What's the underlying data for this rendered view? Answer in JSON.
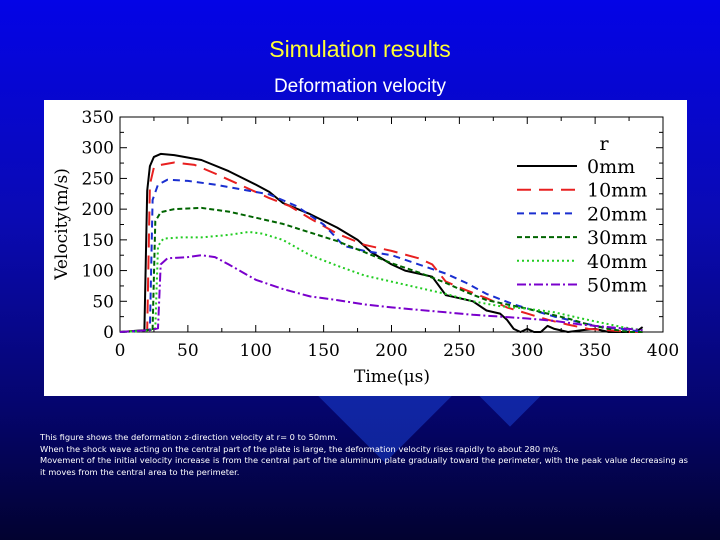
{
  "slide": {
    "title": "Simulation results",
    "subtitle": "Deformation velocity",
    "caption_lines": [
      "This figure shows the deformation z-direction velocity at r= 0 to 50mm.",
      "When the shock wave acting on the central part of the plate is large, the deformation velocity rises rapidly to about 280 m/s.",
      "Movement of the initial velocity increase is from the central part of the aluminum plate gradually toward the perimeter, with the peak value decreasing as it moves from the central area to the perimeter."
    ],
    "colors": {
      "background": "#0404e6",
      "title": "#ffff33",
      "text": "#ffffff"
    }
  },
  "chart_data": {
    "type": "line",
    "xlabel": "Time(μs)",
    "ylabel": "Velocity(m/s)",
    "xlim": [
      0,
      400
    ],
    "ylim": [
      0,
      350
    ],
    "xticks": [
      0,
      50,
      100,
      150,
      200,
      250,
      300,
      350,
      400
    ],
    "yticks": [
      0,
      50,
      100,
      150,
      200,
      250,
      300,
      350
    ],
    "grid": false,
    "legend_title": "r",
    "legend_position": "top-right",
    "series": [
      {
        "name": "0mm",
        "color": "#000000",
        "dash": "solid",
        "points": [
          [
            0,
            0
          ],
          [
            12,
            2
          ],
          [
            18,
            3
          ],
          [
            20,
            230
          ],
          [
            22,
            270
          ],
          [
            25,
            285
          ],
          [
            30,
            290
          ],
          [
            40,
            288
          ],
          [
            60,
            280
          ],
          [
            80,
            262
          ],
          [
            100,
            240
          ],
          [
            110,
            228
          ],
          [
            120,
            210
          ],
          [
            140,
            192
          ],
          [
            160,
            170
          ],
          [
            175,
            150
          ],
          [
            185,
            130
          ],
          [
            200,
            110
          ],
          [
            210,
            100
          ],
          [
            220,
            95
          ],
          [
            230,
            90
          ],
          [
            240,
            60
          ],
          [
            250,
            55
          ],
          [
            260,
            50
          ],
          [
            270,
            35
          ],
          [
            280,
            30
          ],
          [
            285,
            20
          ],
          [
            290,
            5
          ],
          [
            295,
            -2
          ],
          [
            300,
            5
          ],
          [
            305,
            -3
          ],
          [
            310,
            -5
          ],
          [
            315,
            10
          ],
          [
            320,
            5
          ],
          [
            330,
            -5
          ],
          [
            340,
            3
          ],
          [
            350,
            5
          ],
          [
            360,
            -2
          ],
          [
            370,
            -5
          ],
          [
            380,
            -3
          ],
          [
            385,
            8
          ]
        ]
      },
      {
        "name": "10mm",
        "color": "#e82020",
        "dash": "long",
        "points": [
          [
            0,
            0
          ],
          [
            14,
            2
          ],
          [
            20,
            3
          ],
          [
            22,
            240
          ],
          [
            25,
            268
          ],
          [
            30,
            272
          ],
          [
            40,
            276
          ],
          [
            55,
            272
          ],
          [
            70,
            258
          ],
          [
            90,
            238
          ],
          [
            110,
            218
          ],
          [
            125,
            205
          ],
          [
            140,
            185
          ],
          [
            160,
            160
          ],
          [
            180,
            142
          ],
          [
            200,
            132
          ],
          [
            220,
            120
          ],
          [
            230,
            110
          ],
          [
            240,
            82
          ],
          [
            255,
            68
          ],
          [
            270,
            55
          ],
          [
            285,
            40
          ],
          [
            300,
            30
          ],
          [
            315,
            20
          ],
          [
            330,
            12
          ],
          [
            345,
            5
          ],
          [
            360,
            3
          ],
          [
            375,
            -2
          ],
          [
            385,
            0
          ]
        ]
      },
      {
        "name": "20mm",
        "color": "#1a2fd0",
        "dash": "short",
        "points": [
          [
            0,
            0
          ],
          [
            16,
            2
          ],
          [
            22,
            4
          ],
          [
            24,
            215
          ],
          [
            28,
            240
          ],
          [
            35,
            248
          ],
          [
            50,
            246
          ],
          [
            70,
            240
          ],
          [
            90,
            232
          ],
          [
            110,
            224
          ],
          [
            130,
            205
          ],
          [
            150,
            175
          ],
          [
            165,
            140
          ],
          [
            180,
            132
          ],
          [
            200,
            125
          ],
          [
            220,
            110
          ],
          [
            240,
            95
          ],
          [
            255,
            80
          ],
          [
            270,
            62
          ],
          [
            290,
            45
          ],
          [
            305,
            35
          ],
          [
            320,
            25
          ],
          [
            340,
            15
          ],
          [
            355,
            8
          ],
          [
            370,
            5
          ],
          [
            385,
            0
          ]
        ]
      },
      {
        "name": "30mm",
        "color": "#006400",
        "dash": "medium",
        "points": [
          [
            0,
            0
          ],
          [
            18,
            2
          ],
          [
            24,
            5
          ],
          [
            26,
            180
          ],
          [
            30,
            195
          ],
          [
            40,
            200
          ],
          [
            60,
            202
          ],
          [
            80,
            196
          ],
          [
            100,
            186
          ],
          [
            120,
            176
          ],
          [
            140,
            162
          ],
          [
            160,
            148
          ],
          [
            180,
            130
          ],
          [
            200,
            112
          ],
          [
            220,
            97
          ],
          [
            240,
            80
          ],
          [
            255,
            65
          ],
          [
            270,
            52
          ],
          [
            285,
            45
          ],
          [
            300,
            38
          ],
          [
            315,
            30
          ],
          [
            330,
            22
          ],
          [
            345,
            12
          ],
          [
            360,
            5
          ],
          [
            375,
            0
          ],
          [
            385,
            0
          ]
        ]
      },
      {
        "name": "40mm",
        "color": "#22cc22",
        "dash": "dot",
        "points": [
          [
            0,
            0
          ],
          [
            20,
            2
          ],
          [
            26,
            5
          ],
          [
            28,
            140
          ],
          [
            32,
            152
          ],
          [
            45,
            154
          ],
          [
            60,
            154
          ],
          [
            80,
            158
          ],
          [
            95,
            163
          ],
          [
            105,
            160
          ],
          [
            120,
            150
          ],
          [
            140,
            125
          ],
          [
            160,
            108
          ],
          [
            180,
            92
          ],
          [
            200,
            82
          ],
          [
            220,
            72
          ],
          [
            240,
            62
          ],
          [
            260,
            50
          ],
          [
            280,
            42
          ],
          [
            300,
            38
          ],
          [
            320,
            32
          ],
          [
            340,
            22
          ],
          [
            355,
            15
          ],
          [
            370,
            8
          ],
          [
            385,
            3
          ]
        ]
      },
      {
        "name": "50mm",
        "color": "#7a00cc",
        "dash": "dashdot",
        "points": [
          [
            0,
            0
          ],
          [
            22,
            3
          ],
          [
            28,
            6
          ],
          [
            30,
            110
          ],
          [
            35,
            120
          ],
          [
            50,
            122
          ],
          [
            60,
            125
          ],
          [
            70,
            122
          ],
          [
            80,
            110
          ],
          [
            100,
            85
          ],
          [
            120,
            70
          ],
          [
            140,
            58
          ],
          [
            160,
            52
          ],
          [
            180,
            45
          ],
          [
            200,
            40
          ],
          [
            220,
            36
          ],
          [
            240,
            32
          ],
          [
            260,
            28
          ],
          [
            280,
            25
          ],
          [
            300,
            22
          ],
          [
            320,
            18
          ],
          [
            340,
            12
          ],
          [
            360,
            8
          ],
          [
            375,
            5
          ],
          [
            385,
            3
          ]
        ]
      }
    ]
  }
}
